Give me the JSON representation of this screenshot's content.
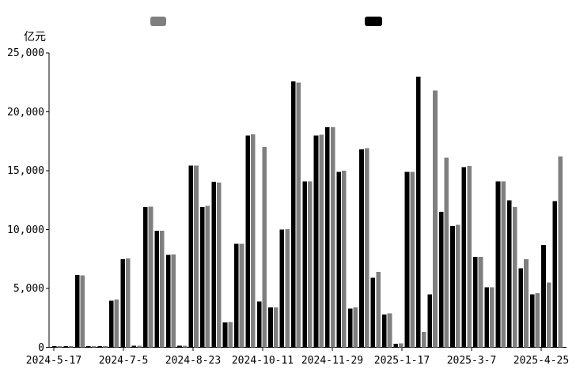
{
  "chart_data": {
    "type": "bar",
    "title": "",
    "unit_label": "亿元",
    "y_axis": {
      "min": 0,
      "max": 25000,
      "tick_labels": [
        "0",
        "5,000",
        "10,000",
        "15,000",
        "20,000",
        "25,000"
      ],
      "tick_values": [
        0,
        5000,
        10000,
        15000,
        20000,
        25000
      ]
    },
    "x_axis": {
      "tick_labels": [
        "2024-5-17",
        "2024-7-5",
        "2024-8-23",
        "2024-10-11",
        "2024-11-29",
        "2025-1-17",
        "2025-3-7",
        "2025-4-25"
      ]
    },
    "legend": {
      "swatches": [
        {
          "id": "gray-series-swatch",
          "color": "#7f7f7f"
        },
        {
          "id": "black-series-swatch",
          "color": "#000000"
        }
      ]
    },
    "grid": false,
    "series": [
      {
        "id": "black",
        "color": "#000000",
        "values": [
          100,
          100,
          6150,
          100,
          100,
          3950,
          7500,
          150,
          11900,
          9900,
          7850,
          150,
          15450,
          11900,
          14050,
          2100,
          8800,
          18000,
          3900,
          3400,
          10000,
          22600,
          14100,
          18000,
          18700,
          14900,
          3300,
          16800,
          5900,
          2800,
          300,
          14900,
          23000,
          4500,
          11500,
          10300,
          15300,
          7700,
          5100,
          14100,
          12500,
          6700,
          4500,
          8700,
          12400
        ]
      },
      {
        "id": "gray",
        "color": "#7f7f7f",
        "values": [
          100,
          100,
          6100,
          100,
          100,
          4050,
          7550,
          150,
          11950,
          9900,
          7900,
          150,
          15450,
          12000,
          14000,
          2150,
          8800,
          18100,
          17000,
          3400,
          10050,
          22500,
          14100,
          18050,
          18700,
          15000,
          3400,
          16900,
          6400,
          2900,
          350,
          14900,
          1300,
          21800,
          16100,
          10400,
          15400,
          7700,
          5100,
          14100,
          11900,
          7500,
          4600,
          5500,
          16200
        ]
      }
    ]
  }
}
